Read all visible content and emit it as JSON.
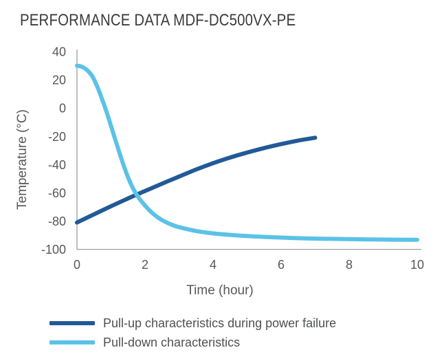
{
  "title": "PERFORMANCE DATA MDF-DC500VX-PE",
  "colors": {
    "title_text": "#3B3B3B",
    "axis_text": "#595757",
    "legend_text": "#4F5052",
    "axis_line": "#9D9D9D",
    "pull_up_blue": "#225A97",
    "pull_down_blue": "#5BC2E7"
  },
  "chart_data": {
    "type": "line",
    "title": "PERFORMANCE DATA MDF-DC500VX-PE",
    "xlabel": "Time (hour)",
    "ylabel": "Temperature (°C)",
    "xlim": [
      0,
      10
    ],
    "ylim": [
      -100,
      40
    ],
    "x_ticks": [
      0,
      2,
      4,
      6,
      8,
      10
    ],
    "y_ticks": [
      40,
      20,
      0,
      -20,
      -40,
      -60,
      -80,
      -100
    ],
    "grid": false,
    "legend_position": "below-chart-left",
    "axis_color": "#9D9D9D",
    "tick_label_color": "#595757",
    "series": [
      {
        "name": "Pull-up characteristics during power failure",
        "color": "#225A97",
        "points": [
          [
            0,
            -81
          ],
          [
            0.5,
            -75.2
          ],
          [
            1,
            -69.5
          ],
          [
            1.5,
            -64
          ],
          [
            2,
            -58.7
          ],
          [
            2.5,
            -53.5
          ],
          [
            3,
            -48.5
          ],
          [
            3.5,
            -43.5
          ],
          [
            4,
            -39
          ],
          [
            4.5,
            -35
          ],
          [
            5,
            -31.5
          ],
          [
            5.5,
            -28.3
          ],
          [
            6,
            -25.5
          ],
          [
            6.5,
            -23
          ],
          [
            7,
            -21
          ]
        ]
      },
      {
        "name": "Pull-down characteristics",
        "color": "#5BC2E7",
        "points": [
          [
            0,
            30
          ],
          [
            0.15,
            29.2
          ],
          [
            0.3,
            26.8
          ],
          [
            0.45,
            22.5
          ],
          [
            0.6,
            15
          ],
          [
            0.75,
            5.5
          ],
          [
            0.9,
            -5
          ],
          [
            1.05,
            -16.5
          ],
          [
            1.2,
            -28
          ],
          [
            1.35,
            -39
          ],
          [
            1.5,
            -49
          ],
          [
            1.65,
            -57
          ],
          [
            1.8,
            -63
          ],
          [
            2,
            -69
          ],
          [
            2.2,
            -74
          ],
          [
            2.4,
            -77.8
          ],
          [
            2.6,
            -80.6
          ],
          [
            2.8,
            -82.7
          ],
          [
            3,
            -84.3
          ],
          [
            3.5,
            -87
          ],
          [
            4,
            -88.7
          ],
          [
            4.5,
            -89.8
          ],
          [
            5,
            -90.6
          ],
          [
            5.5,
            -91.2
          ],
          [
            6,
            -91.7
          ],
          [
            6.5,
            -92.1
          ],
          [
            7,
            -92.4
          ],
          [
            7.5,
            -92.6
          ],
          [
            8,
            -92.8
          ],
          [
            9,
            -93.1
          ],
          [
            10,
            -93.3
          ]
        ]
      }
    ]
  }
}
